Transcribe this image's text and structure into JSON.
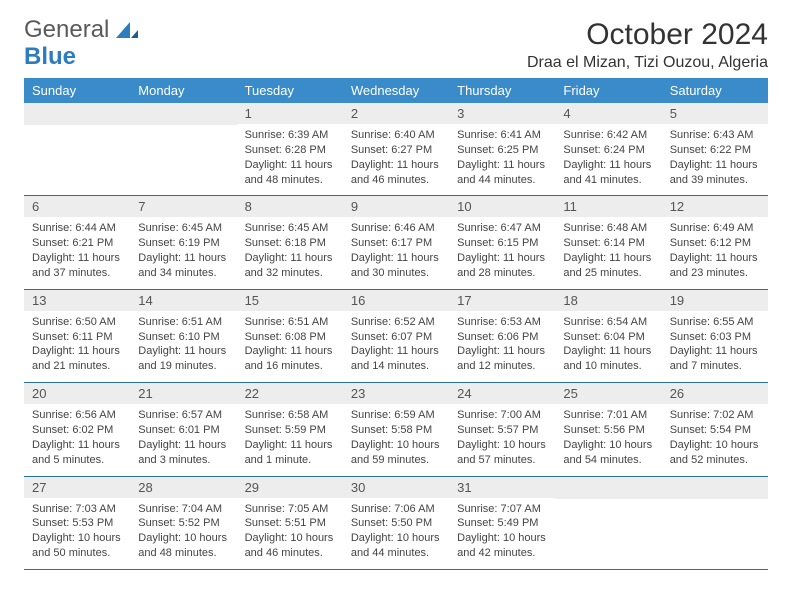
{
  "brand": {
    "part1": "General",
    "part2": "Blue"
  },
  "title": "October 2024",
  "location": "Draa el Mizan, Tizi Ouzou, Algeria",
  "colors": {
    "header_bg": "#3a8bc9",
    "header_text": "#ffffff",
    "daynum_bg": "#ededed",
    "row_border": "#2a6fa8",
    "brand_blue": "#2e7cc0",
    "brand_gray": "#5a5a5a"
  },
  "weekdays": [
    "Sunday",
    "Monday",
    "Tuesday",
    "Wednesday",
    "Thursday",
    "Friday",
    "Saturday"
  ],
  "weeks": [
    [
      {
        "n": "",
        "sunrise": "",
        "sunset": "",
        "daylight": ""
      },
      {
        "n": "",
        "sunrise": "",
        "sunset": "",
        "daylight": ""
      },
      {
        "n": "1",
        "sunrise": "Sunrise: 6:39 AM",
        "sunset": "Sunset: 6:28 PM",
        "daylight": "Daylight: 11 hours and 48 minutes."
      },
      {
        "n": "2",
        "sunrise": "Sunrise: 6:40 AM",
        "sunset": "Sunset: 6:27 PM",
        "daylight": "Daylight: 11 hours and 46 minutes."
      },
      {
        "n": "3",
        "sunrise": "Sunrise: 6:41 AM",
        "sunset": "Sunset: 6:25 PM",
        "daylight": "Daylight: 11 hours and 44 minutes."
      },
      {
        "n": "4",
        "sunrise": "Sunrise: 6:42 AM",
        "sunset": "Sunset: 6:24 PM",
        "daylight": "Daylight: 11 hours and 41 minutes."
      },
      {
        "n": "5",
        "sunrise": "Sunrise: 6:43 AM",
        "sunset": "Sunset: 6:22 PM",
        "daylight": "Daylight: 11 hours and 39 minutes."
      }
    ],
    [
      {
        "n": "6",
        "sunrise": "Sunrise: 6:44 AM",
        "sunset": "Sunset: 6:21 PM",
        "daylight": "Daylight: 11 hours and 37 minutes."
      },
      {
        "n": "7",
        "sunrise": "Sunrise: 6:45 AM",
        "sunset": "Sunset: 6:19 PM",
        "daylight": "Daylight: 11 hours and 34 minutes."
      },
      {
        "n": "8",
        "sunrise": "Sunrise: 6:45 AM",
        "sunset": "Sunset: 6:18 PM",
        "daylight": "Daylight: 11 hours and 32 minutes."
      },
      {
        "n": "9",
        "sunrise": "Sunrise: 6:46 AM",
        "sunset": "Sunset: 6:17 PM",
        "daylight": "Daylight: 11 hours and 30 minutes."
      },
      {
        "n": "10",
        "sunrise": "Sunrise: 6:47 AM",
        "sunset": "Sunset: 6:15 PM",
        "daylight": "Daylight: 11 hours and 28 minutes."
      },
      {
        "n": "11",
        "sunrise": "Sunrise: 6:48 AM",
        "sunset": "Sunset: 6:14 PM",
        "daylight": "Daylight: 11 hours and 25 minutes."
      },
      {
        "n": "12",
        "sunrise": "Sunrise: 6:49 AM",
        "sunset": "Sunset: 6:12 PM",
        "daylight": "Daylight: 11 hours and 23 minutes."
      }
    ],
    [
      {
        "n": "13",
        "sunrise": "Sunrise: 6:50 AM",
        "sunset": "Sunset: 6:11 PM",
        "daylight": "Daylight: 11 hours and 21 minutes."
      },
      {
        "n": "14",
        "sunrise": "Sunrise: 6:51 AM",
        "sunset": "Sunset: 6:10 PM",
        "daylight": "Daylight: 11 hours and 19 minutes."
      },
      {
        "n": "15",
        "sunrise": "Sunrise: 6:51 AM",
        "sunset": "Sunset: 6:08 PM",
        "daylight": "Daylight: 11 hours and 16 minutes."
      },
      {
        "n": "16",
        "sunrise": "Sunrise: 6:52 AM",
        "sunset": "Sunset: 6:07 PM",
        "daylight": "Daylight: 11 hours and 14 minutes."
      },
      {
        "n": "17",
        "sunrise": "Sunrise: 6:53 AM",
        "sunset": "Sunset: 6:06 PM",
        "daylight": "Daylight: 11 hours and 12 minutes."
      },
      {
        "n": "18",
        "sunrise": "Sunrise: 6:54 AM",
        "sunset": "Sunset: 6:04 PM",
        "daylight": "Daylight: 11 hours and 10 minutes."
      },
      {
        "n": "19",
        "sunrise": "Sunrise: 6:55 AM",
        "sunset": "Sunset: 6:03 PM",
        "daylight": "Daylight: 11 hours and 7 minutes."
      }
    ],
    [
      {
        "n": "20",
        "sunrise": "Sunrise: 6:56 AM",
        "sunset": "Sunset: 6:02 PM",
        "daylight": "Daylight: 11 hours and 5 minutes."
      },
      {
        "n": "21",
        "sunrise": "Sunrise: 6:57 AM",
        "sunset": "Sunset: 6:01 PM",
        "daylight": "Daylight: 11 hours and 3 minutes."
      },
      {
        "n": "22",
        "sunrise": "Sunrise: 6:58 AM",
        "sunset": "Sunset: 5:59 PM",
        "daylight": "Daylight: 11 hours and 1 minute."
      },
      {
        "n": "23",
        "sunrise": "Sunrise: 6:59 AM",
        "sunset": "Sunset: 5:58 PM",
        "daylight": "Daylight: 10 hours and 59 minutes."
      },
      {
        "n": "24",
        "sunrise": "Sunrise: 7:00 AM",
        "sunset": "Sunset: 5:57 PM",
        "daylight": "Daylight: 10 hours and 57 minutes."
      },
      {
        "n": "25",
        "sunrise": "Sunrise: 7:01 AM",
        "sunset": "Sunset: 5:56 PM",
        "daylight": "Daylight: 10 hours and 54 minutes."
      },
      {
        "n": "26",
        "sunrise": "Sunrise: 7:02 AM",
        "sunset": "Sunset: 5:54 PM",
        "daylight": "Daylight: 10 hours and 52 minutes."
      }
    ],
    [
      {
        "n": "27",
        "sunrise": "Sunrise: 7:03 AM",
        "sunset": "Sunset: 5:53 PM",
        "daylight": "Daylight: 10 hours and 50 minutes."
      },
      {
        "n": "28",
        "sunrise": "Sunrise: 7:04 AM",
        "sunset": "Sunset: 5:52 PM",
        "daylight": "Daylight: 10 hours and 48 minutes."
      },
      {
        "n": "29",
        "sunrise": "Sunrise: 7:05 AM",
        "sunset": "Sunset: 5:51 PM",
        "daylight": "Daylight: 10 hours and 46 minutes."
      },
      {
        "n": "30",
        "sunrise": "Sunrise: 7:06 AM",
        "sunset": "Sunset: 5:50 PM",
        "daylight": "Daylight: 10 hours and 44 minutes."
      },
      {
        "n": "31",
        "sunrise": "Sunrise: 7:07 AM",
        "sunset": "Sunset: 5:49 PM",
        "daylight": "Daylight: 10 hours and 42 minutes."
      },
      {
        "n": "",
        "sunrise": "",
        "sunset": "",
        "daylight": ""
      },
      {
        "n": "",
        "sunrise": "",
        "sunset": "",
        "daylight": ""
      }
    ]
  ]
}
